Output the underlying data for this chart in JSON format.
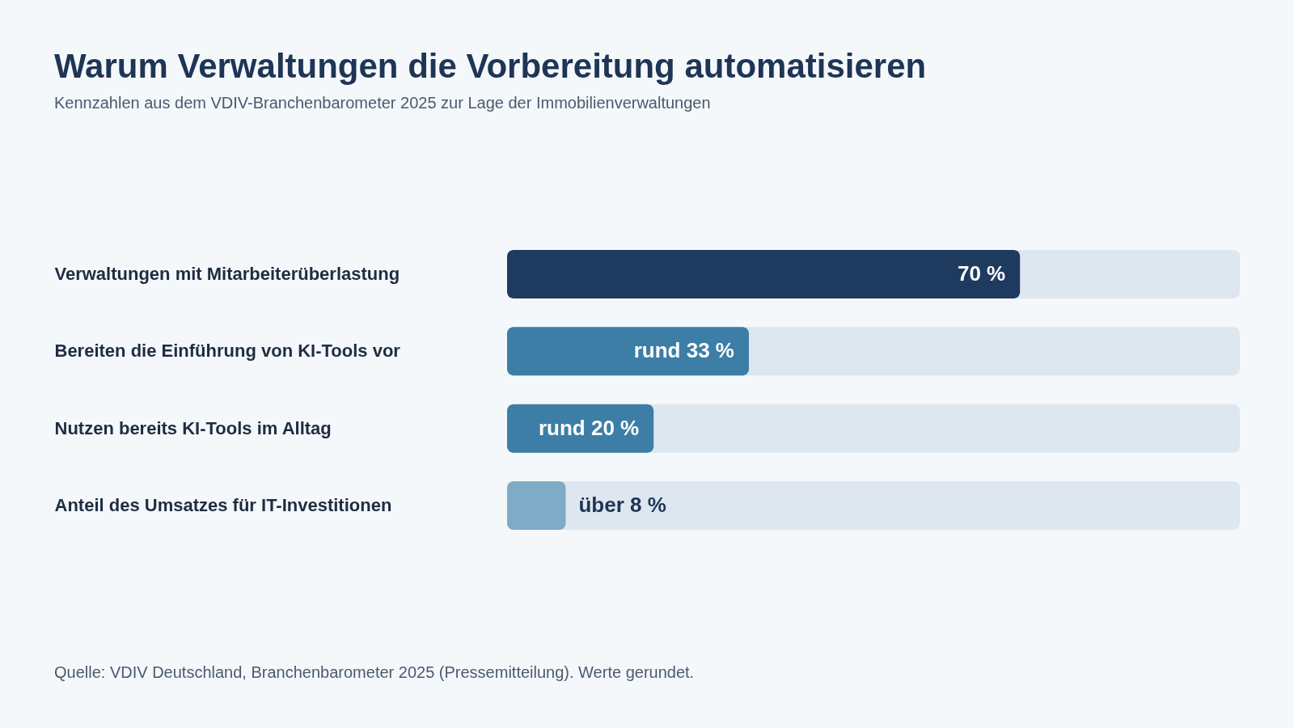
{
  "chart_data": {
    "type": "bar",
    "orientation": "horizontal",
    "title": "Warum Verwaltungen die Vorbereitung automatisieren",
    "subtitle": "Kennzahlen aus dem VDIV-Branchenbarometer 2025 zur Lage der Immobilienverwaltungen",
    "categories": [
      "Verwaltungen mit Mitarbeiterüberlastung",
      "Bereiten die Einführung von KI-Tools vor",
      "Nutzen bereits KI-Tools im Alltag",
      "Anteil des Umsatzes für IT-Investitionen"
    ],
    "values": [
      70,
      33,
      20,
      8
    ],
    "colors": [
      "#1f3a5f",
      "#3d7ea6",
      "#3d7ea6",
      "#80abc6"
    ],
    "value_labels": [
      "70 %",
      "rund 33 %",
      "rund 20 %",
      "über 8 %"
    ],
    "xlim": [
      0,
      100
    ],
    "tick_labels": "y",
    "annotations": [
      "Quelle: VDIV Deutschland, Branchenbarometer 2025 (Pressemitteilung). Werte gerundet."
    ]
  }
}
